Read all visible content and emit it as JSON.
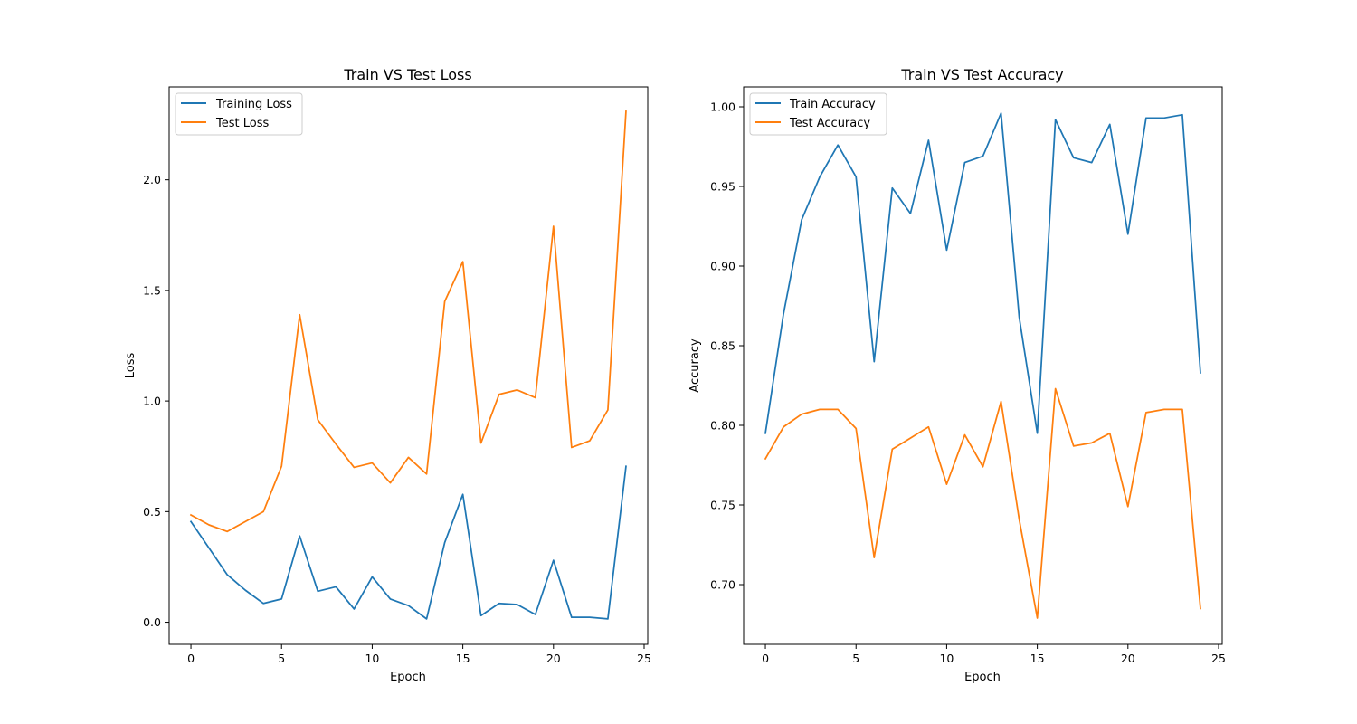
{
  "chart_data": [
    {
      "type": "line",
      "title": "Train VS Test Loss",
      "xlabel": "Epoch",
      "ylabel": "Loss",
      "xlim": [
        -1.2,
        25.2
      ],
      "ylim": [
        -0.1,
        2.42
      ],
      "xticks": [
        0,
        5,
        10,
        15,
        20,
        25
      ],
      "yticks": [
        0.0,
        0.5,
        1.0,
        1.5,
        2.0
      ],
      "xtick_labels": [
        "0",
        "5",
        "10",
        "15",
        "20",
        "25"
      ],
      "ytick_labels": [
        "0.0",
        "0.5",
        "1.0",
        "1.5",
        "2.0"
      ],
      "grid": false,
      "legend_position": "upper-left",
      "x": [
        0,
        1,
        2,
        3,
        4,
        5,
        6,
        7,
        8,
        9,
        10,
        11,
        12,
        13,
        14,
        15,
        16,
        17,
        18,
        19,
        20,
        21,
        22,
        23,
        24
      ],
      "series": [
        {
          "name": "Training Loss",
          "color": "#1f77b4",
          "values": [
            0.455,
            0.335,
            0.215,
            0.145,
            0.085,
            0.105,
            0.39,
            0.14,
            0.16,
            0.06,
            0.205,
            0.105,
            0.075,
            0.015,
            0.36,
            0.578,
            0.03,
            0.085,
            0.08,
            0.035,
            0.28,
            0.022,
            0.022,
            0.015,
            0.705
          ]
        },
        {
          "name": "Test Loss",
          "color": "#ff7f0e",
          "values": [
            0.485,
            0.44,
            0.41,
            0.455,
            0.5,
            0.705,
            1.39,
            0.915,
            0.805,
            0.7,
            0.72,
            0.63,
            0.745,
            0.67,
            1.45,
            1.63,
            0.81,
            1.03,
            1.05,
            1.015,
            1.79,
            0.79,
            0.82,
            0.96,
            2.31
          ]
        }
      ]
    },
    {
      "type": "line",
      "title": "Train VS Test Accuracy",
      "xlabel": "Epoch",
      "ylabel": "Accuracy",
      "xlim": [
        -1.2,
        25.2
      ],
      "ylim": [
        0.6625,
        1.0125
      ],
      "xticks": [
        0,
        5,
        10,
        15,
        20,
        25
      ],
      "yticks": [
        0.7,
        0.75,
        0.8,
        0.85,
        0.9,
        0.95,
        1.0
      ],
      "xtick_labels": [
        "0",
        "5",
        "10",
        "15",
        "20",
        "25"
      ],
      "ytick_labels": [
        "0.70",
        "0.75",
        "0.80",
        "0.85",
        "0.90",
        "0.95",
        "1.00"
      ],
      "grid": false,
      "legend_position": "upper-left",
      "x": [
        0,
        1,
        2,
        3,
        4,
        5,
        6,
        7,
        8,
        9,
        10,
        11,
        12,
        13,
        14,
        15,
        16,
        17,
        18,
        19,
        20,
        21,
        22,
        23,
        24
      ],
      "series": [
        {
          "name": "Train Accuracy",
          "color": "#1f77b4",
          "values": [
            0.795,
            0.87,
            0.929,
            0.956,
            0.976,
            0.956,
            0.84,
            0.949,
            0.933,
            0.979,
            0.91,
            0.965,
            0.969,
            0.996,
            0.868,
            0.795,
            0.992,
            0.968,
            0.965,
            0.989,
            0.92,
            0.993,
            0.993,
            0.995,
            0.833
          ]
        },
        {
          "name": "Test Accuracy",
          "color": "#ff7f0e",
          "values": [
            0.779,
            0.799,
            0.807,
            0.81,
            0.81,
            0.798,
            0.717,
            0.785,
            0.792,
            0.799,
            0.763,
            0.794,
            0.774,
            0.815,
            0.741,
            0.679,
            0.823,
            0.787,
            0.789,
            0.795,
            0.749,
            0.808,
            0.81,
            0.81,
            0.685
          ]
        }
      ]
    }
  ]
}
